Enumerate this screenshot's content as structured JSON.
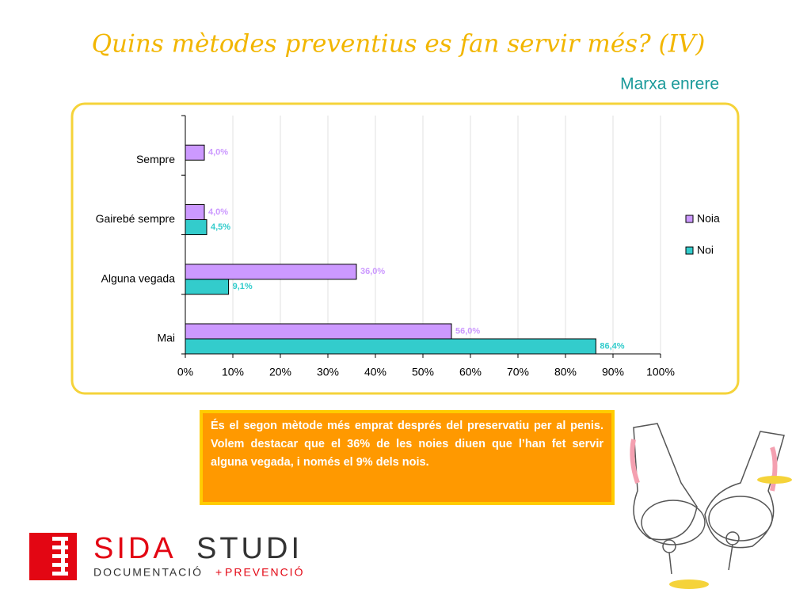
{
  "header": {
    "title": "Quins mètodes preventius es fan servir més? (IV)",
    "link": "Marxa enrere"
  },
  "chart_data": {
    "type": "hbar",
    "categories": [
      "Sempre",
      "Gairebé sempre",
      "Alguna vegada",
      "Mai"
    ],
    "series": [
      {
        "name": "Noia",
        "color": "#cc99ff",
        "values": [
          4.0,
          4.0,
          36.0,
          56.0
        ],
        "value_labels": [
          "4,0%",
          "4,0%",
          "36,0%",
          "56,0%"
        ]
      },
      {
        "name": "Noi",
        "color": "#33cccc",
        "values": [
          null,
          4.5,
          9.1,
          86.4
        ],
        "value_labels": [
          null,
          "4,5%",
          "9,1%",
          "86,4%"
        ]
      }
    ],
    "xlim": [
      0,
      100
    ],
    "xticks": [
      {
        "value": 0,
        "label": "0%"
      },
      {
        "value": 10,
        "label": "10%"
      },
      {
        "value": 20,
        "label": "20%"
      },
      {
        "value": 30,
        "label": "30%"
      },
      {
        "value": 40,
        "label": "40%"
      },
      {
        "value": 50,
        "label": "50%"
      },
      {
        "value": 60,
        "label": "60%"
      },
      {
        "value": 70,
        "label": "70%"
      },
      {
        "value": 80,
        "label": "80%"
      },
      {
        "value": 90,
        "label": "90%"
      },
      {
        "value": 100,
        "label": "100%"
      }
    ],
    "grid": true,
    "legend": "right"
  },
  "note": {
    "text": "És el segon mètode més emprat després del preservatiu per al penis. Volem destacar que el 36% de les noies diuen que l’han fet servir alguna vegada, i només el 9% dels nois."
  },
  "logo": {
    "name_red": "SIDA",
    "name_dark": "STUDI",
    "tagline_dark": "DOCUMENTACIÓ",
    "tagline_plus": "+",
    "tagline_red": "PREVENCIÓ"
  }
}
